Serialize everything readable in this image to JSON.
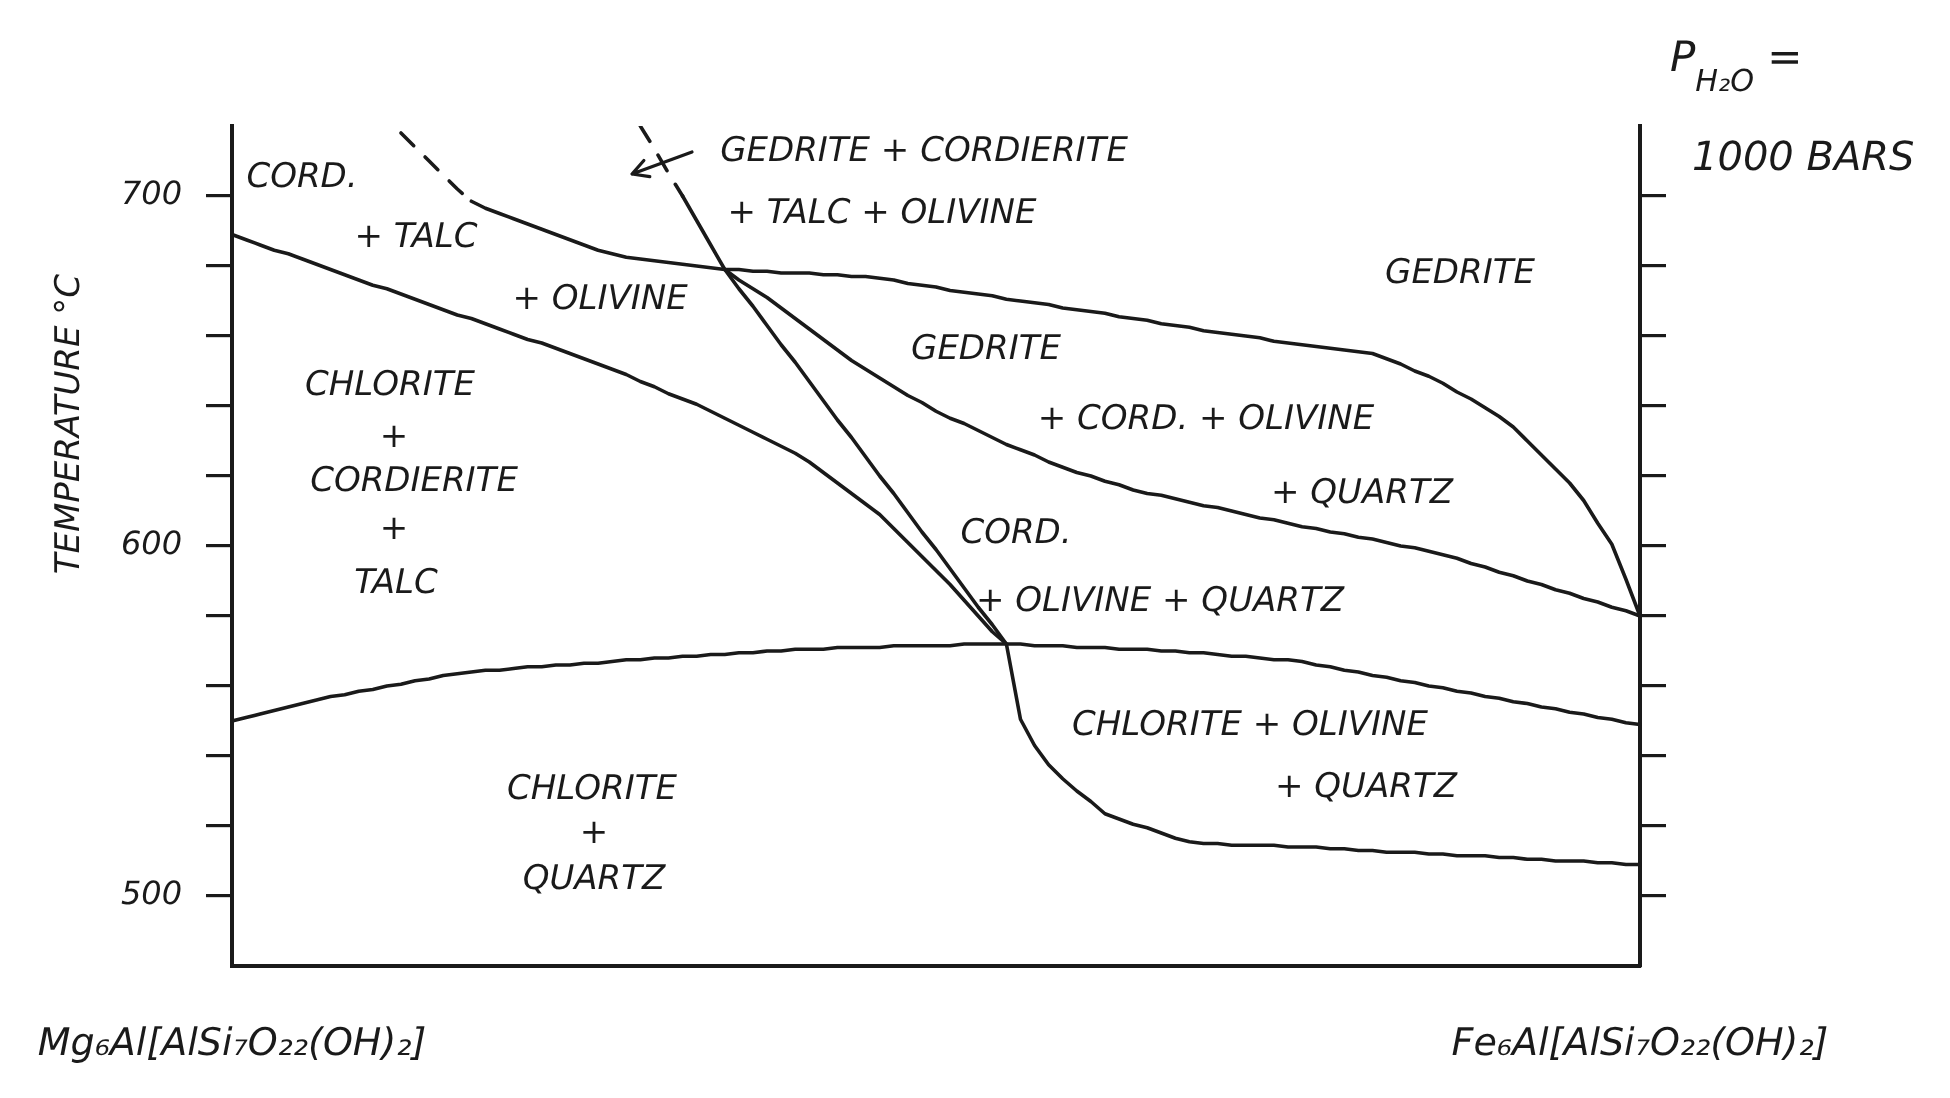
{
  "chart_data": {
    "type": "line",
    "ylabel": "TEMPERATURE °C",
    "categories": [
      "Mg₆Al[AlSi₇O₂₂(OH)₂]",
      null,
      null,
      null,
      null,
      null,
      null,
      null,
      null,
      null,
      null,
      null,
      null,
      null,
      null,
      null,
      null,
      null,
      null,
      null,
      null,
      null,
      null,
      null,
      null,
      null,
      null,
      null,
      null,
      null,
      null,
      null,
      null,
      null,
      null,
      null,
      null,
      null,
      null,
      null,
      null,
      null,
      null,
      null,
      null,
      null,
      null,
      null,
      null,
      null,
      null,
      null,
      null,
      null,
      null,
      null,
      null,
      null,
      null,
      null,
      null,
      null,
      null,
      null,
      null,
      null,
      null,
      null,
      null,
      null,
      null,
      null,
      null,
      null,
      null,
      null,
      null,
      null,
      null,
      null,
      null,
      null,
      null,
      null,
      null,
      null,
      null,
      null,
      null,
      null,
      null,
      null,
      null,
      null,
      null,
      null,
      null,
      null,
      null,
      null,
      "Fe₆Al[AlSi₇O₂₂(OH)₂]"
    ],
    "ylim": [
      480,
      720
    ],
    "yticks": [
      500,
      {
        "value": 520,
        "label": null
      },
      {
        "value": 540,
        "label": null
      },
      {
        "value": 560,
        "label": null
      },
      {
        "value": 580,
        "label": null
      },
      600,
      {
        "value": 620,
        "label": null
      },
      {
        "value": 640,
        "label": null
      },
      {
        "value": 660,
        "label": null
      },
      {
        "value": 680,
        "label": null
      },
      700
    ],
    "marker": "none",
    "line_style": "solid",
    "series": [
      {
        "color": "#1a1a1a",
        "values": [
          689,
          687.5,
          686,
          684.5,
          683.5,
          682,
          680.5,
          679,
          677.5,
          676,
          674.5,
          673.5,
          672,
          670.5,
          669,
          667.5,
          666,
          665,
          663.5,
          662,
          660.5,
          659,
          658,
          656.5,
          655,
          653.5,
          652,
          650.5,
          649,
          647,
          645.5,
          643.5,
          642,
          640.5,
          638.5,
          636.5,
          634.5,
          632.5,
          630.5,
          628.5,
          626.5,
          624,
          621,
          618,
          615,
          612,
          609,
          605,
          601,
          597,
          593,
          589,
          584.5,
          580,
          575.5,
          572,
          null,
          null,
          null,
          null,
          null,
          null,
          null,
          null,
          null,
          null,
          null,
          null,
          null,
          null,
          null,
          null,
          null,
          null,
          null,
          null,
          null,
          null,
          null,
          null,
          null,
          null,
          null,
          null,
          null,
          null,
          null,
          null,
          null,
          null,
          null,
          null,
          null,
          null,
          null,
          null,
          null,
          null,
          null,
          null,
          null
        ]
      },
      {
        "color": "#1a1a1a",
        "values": [
          550,
          551,
          552,
          553,
          554,
          555,
          556,
          557,
          557.5,
          558.5,
          559,
          560,
          560.5,
          561.5,
          562,
          563,
          563.5,
          564,
          564.5,
          564.5,
          565,
          565.5,
          565.5,
          566,
          566,
          566.5,
          566.5,
          567,
          567.5,
          567.5,
          568,
          568,
          568.5,
          568.5,
          569,
          569,
          569.5,
          569.5,
          570,
          570,
          570.5,
          570.5,
          570.5,
          571,
          571,
          571,
          571,
          571.5,
          571.5,
          571.5,
          571.5,
          571.5,
          572,
          572,
          572,
          572,
          572,
          571.5,
          571.5,
          571.5,
          571,
          571,
          571,
          570.5,
          570.5,
          570.5,
          570,
          570,
          569.5,
          569.5,
          569,
          568.5,
          568.5,
          568,
          567.5,
          567.5,
          567,
          566,
          565.5,
          564.5,
          564,
          563,
          562.5,
          561.5,
          561,
          560,
          559.5,
          558.5,
          558,
          557,
          556.5,
          555.5,
          555,
          554,
          553.5,
          552.5,
          552,
          551,
          550.5,
          549.5,
          549
        ]
      },
      {
        "color": "#1a1a1a",
        "line_style": "dashed",
        "values": [
          null,
          null,
          null,
          null,
          null,
          null,
          null,
          null,
          null,
          null,
          null,
          null,
          718,
          714,
          710,
          706,
          702,
          698.5,
          null,
          null,
          null,
          null,
          null,
          null,
          null,
          null,
          null,
          null,
          null,
          null,
          null,
          null,
          null,
          null,
          null,
          null,
          null,
          null,
          null,
          null,
          null,
          null,
          null,
          null,
          null,
          null,
          null,
          null,
          null,
          null,
          null,
          null,
          null,
          null,
          null,
          null,
          null,
          null,
          null,
          null,
          null,
          null,
          null,
          null,
          null,
          null,
          null,
          null,
          null,
          null,
          null,
          null,
          null,
          null,
          null,
          null,
          null,
          null,
          null,
          null,
          null,
          null,
          null,
          null,
          null,
          null,
          null,
          null,
          null,
          null,
          null,
          null,
          null,
          null,
          null,
          null,
          null,
          null,
          null,
          null,
          null
        ]
      },
      {
        "color": "#1a1a1a",
        "values": [
          null,
          null,
          null,
          null,
          null,
          null,
          null,
          null,
          null,
          null,
          null,
          null,
          null,
          null,
          null,
          null,
          null,
          698.5,
          696.5,
          695,
          693.5,
          692,
          690.5,
          689,
          687.5,
          686,
          684.5,
          683.5,
          682.5,
          682,
          681.5,
          681,
          680.5,
          680,
          679.5,
          679,
          679,
          678.5,
          678.5,
          678,
          678,
          678,
          677.5,
          677.5,
          677,
          677,
          676.5,
          676,
          675,
          674.5,
          674,
          673,
          672.5,
          672,
          671.5,
          670.5,
          670,
          669.5,
          669,
          668,
          667.5,
          667,
          666.5,
          665.5,
          665,
          664.5,
          663.5,
          663,
          662.5,
          661.5,
          661,
          660.5,
          660,
          659.5,
          658.5,
          658,
          657.5,
          657,
          656.5,
          656,
          655.5,
          655,
          653.5,
          652,
          650,
          648.5,
          646.5,
          644,
          642,
          639.5,
          637,
          634,
          630,
          626,
          622,
          618,
          613,
          606.5,
          600.5,
          590.5,
          580
        ]
      },
      {
        "color": "#1a1a1a",
        "line_style": "dashed",
        "values": [
          null,
          null,
          null,
          null,
          null,
          null,
          null,
          null,
          null,
          null,
          null,
          null,
          null,
          null,
          null,
          null,
          null,
          null,
          null,
          null,
          null,
          null,
          null,
          null,
          null,
          null,
          null,
          null,
          null,
          720,
          713.5,
          706.5,
          700,
          null,
          null,
          null,
          null,
          null,
          null,
          null,
          null,
          null,
          null,
          null,
          null,
          null,
          null,
          null,
          null,
          null,
          null,
          null,
          null,
          null,
          null,
          null,
          null,
          null,
          null,
          null,
          null,
          null,
          null,
          null,
          null,
          null,
          null,
          null,
          null,
          null,
          null,
          null,
          null,
          null,
          null,
          null,
          null,
          null,
          null,
          null,
          null,
          null,
          null,
          null,
          null,
          null,
          null,
          null,
          null,
          null,
          null,
          null,
          null,
          null,
          null,
          null,
          null,
          null,
          null,
          null,
          null
        ]
      },
      {
        "color": "#1a1a1a",
        "values": [
          null,
          null,
          null,
          null,
          null,
          null,
          null,
          null,
          null,
          null,
          null,
          null,
          null,
          null,
          null,
          null,
          null,
          null,
          null,
          null,
          null,
          null,
          null,
          null,
          null,
          null,
          null,
          null,
          null,
          null,
          null,
          null,
          700,
          693,
          686,
          679,
          673.5,
          668.5,
          663,
          657.5,
          652.5,
          647,
          641.5,
          636,
          631,
          625.5,
          620,
          615,
          609.5,
          604,
          599,
          593.5,
          588,
          582.5,
          577.5,
          572,
          550.5,
          543,
          537.5,
          533.5,
          530,
          527,
          523.5,
          522,
          520.5,
          519.5,
          518,
          516.5,
          515.5,
          515,
          515,
          514.5,
          514.5,
          514.5,
          514.5,
          514,
          514,
          514,
          513.5,
          513.5,
          513,
          513,
          512.5,
          512.5,
          512.5,
          512,
          512,
          511.5,
          511.5,
          511.5,
          511,
          511,
          510.5,
          510.5,
          510,
          510,
          510,
          509.5,
          509.5,
          509,
          509
        ]
      },
      {
        "color": "#1a1a1a",
        "values": [
          null,
          null,
          null,
          null,
          null,
          null,
          null,
          null,
          null,
          null,
          null,
          null,
          null,
          null,
          null,
          null,
          null,
          null,
          null,
          null,
          null,
          null,
          null,
          null,
          null,
          null,
          null,
          null,
          null,
          null,
          null,
          null,
          null,
          null,
          null,
          679,
          676,
          673.5,
          671,
          668,
          665,
          662,
          659,
          656,
          653,
          650.5,
          648,
          645.5,
          643,
          641,
          638.5,
          636.5,
          635,
          633,
          631,
          629,
          627.5,
          626,
          624,
          622.5,
          621,
          620,
          618.5,
          617.5,
          616,
          615,
          614.5,
          613.5,
          612.5,
          611.5,
          611,
          610,
          609,
          608,
          607.5,
          606.5,
          605.5,
          605,
          604,
          603.5,
          602.5,
          602,
          601,
          600,
          599.5,
          598.5,
          597.5,
          596.5,
          595,
          594,
          592.5,
          591.5,
          590,
          589,
          587.5,
          586.5,
          585,
          584,
          582.5,
          581.5,
          580
        ]
      }
    ],
    "annotations": [
      "CORD.",
      "+ TALC",
      "+ OLIVINE",
      "CHLORITE",
      "+",
      "CORDIERITE",
      "+",
      "TALC",
      "GEDRITE + CORDIERITE",
      "+ TALC + OLIVINE",
      "GEDRITE",
      "GEDRITE",
      "+ CORD. + OLIVINE",
      "+ QUARTZ",
      "CORD.",
      "+ OLIVINE + QUARTZ",
      "CHLORITE + OLIVINE",
      "+ QUARTZ",
      "CHLORITE",
      "+",
      "QUARTZ",
      "P$_{H₂O}$ =",
      "1000 BARS"
    ]
  }
}
